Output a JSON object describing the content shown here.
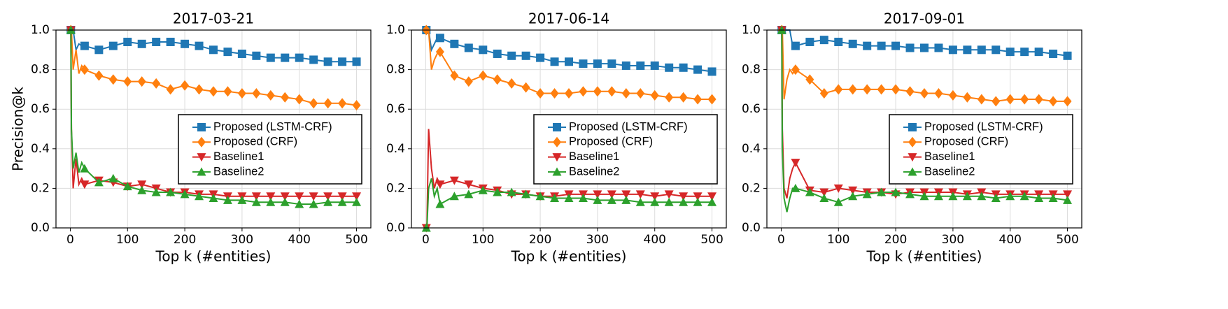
{
  "chart_data": [
    {
      "type": "line",
      "title": "2017-03-21",
      "x_label": "Top k (#entities)",
      "y_label": "Precision@k",
      "x": [
        1,
        2,
        5,
        10,
        15,
        20,
        25,
        50,
        75,
        100,
        125,
        150,
        175,
        200,
        225,
        250,
        275,
        300,
        325,
        350,
        375,
        400,
        425,
        450,
        475,
        500
      ],
      "xlim": [
        -25,
        525
      ],
      "xticks": [
        0,
        100,
        200,
        300,
        400,
        500
      ],
      "ylim": [
        0,
        1
      ],
      "yticks": [
        {
          "value": 0,
          "label": "0.0"
        },
        0.2,
        0.4,
        0.6,
        0.8,
        {
          "value": 1,
          "label": "1.0"
        }
      ],
      "grid": true,
      "legend": "center right",
      "series": [
        {
          "name": "Proposed (LSTM-CRF)",
          "color": "#1f77b4",
          "marker": "square",
          "values": [
            1.0,
            1.0,
            1.0,
            0.9,
            0.93,
            0.92,
            0.92,
            0.9,
            0.92,
            0.94,
            0.93,
            0.94,
            0.94,
            0.93,
            0.92,
            0.9,
            0.89,
            0.88,
            0.87,
            0.86,
            0.86,
            0.86,
            0.85,
            0.84,
            0.84,
            0.84
          ]
        },
        {
          "name": "Proposed (CRF)",
          "color": "#ff7f0e",
          "marker": "diamond",
          "values": [
            1.0,
            1.0,
            0.8,
            0.9,
            0.78,
            0.82,
            0.8,
            0.77,
            0.75,
            0.74,
            0.74,
            0.73,
            0.7,
            0.72,
            0.7,
            0.69,
            0.69,
            0.68,
            0.68,
            0.67,
            0.66,
            0.65,
            0.63,
            0.63,
            0.63,
            0.62
          ]
        },
        {
          "name": "Baseline1",
          "color": "#d62728",
          "marker": "triangle-down",
          "values": [
            1.0,
            0.5,
            0.2,
            0.35,
            0.22,
            0.25,
            0.22,
            0.24,
            0.23,
            0.21,
            0.22,
            0.2,
            0.18,
            0.18,
            0.17,
            0.17,
            0.16,
            0.16,
            0.16,
            0.16,
            0.16,
            0.16,
            0.16,
            0.16,
            0.16,
            0.16
          ]
        },
        {
          "name": "Baseline2",
          "color": "#2ca02c",
          "marker": "triangle-up",
          "values": [
            1.0,
            0.5,
            0.3,
            0.38,
            0.28,
            0.33,
            0.3,
            0.23,
            0.25,
            0.21,
            0.19,
            0.18,
            0.18,
            0.17,
            0.16,
            0.15,
            0.14,
            0.14,
            0.13,
            0.13,
            0.13,
            0.12,
            0.12,
            0.13,
            0.13,
            0.13
          ]
        }
      ]
    },
    {
      "type": "line",
      "title": "2017-06-14",
      "x_label": "Top k (#entities)",
      "x": [
        1,
        2,
        5,
        10,
        15,
        20,
        25,
        50,
        75,
        100,
        125,
        150,
        175,
        200,
        225,
        250,
        275,
        300,
        325,
        350,
        375,
        400,
        425,
        450,
        475,
        500
      ],
      "xlim": [
        -25,
        525
      ],
      "xticks": [
        0,
        100,
        200,
        300,
        400,
        500
      ],
      "ylim": [
        0,
        1
      ],
      "yticks": [
        {
          "value": 0,
          "label": "0.0"
        },
        0.2,
        0.4,
        0.6,
        0.8,
        {
          "value": 1,
          "label": "1.0"
        }
      ],
      "grid": true,
      "legend": "center right",
      "series": [
        {
          "name": "Proposed (LSTM-CRF)",
          "color": "#1f77b4",
          "marker": "square",
          "values": [
            1.0,
            1.0,
            1.0,
            0.9,
            0.93,
            0.96,
            0.96,
            0.93,
            0.91,
            0.9,
            0.88,
            0.87,
            0.87,
            0.86,
            0.84,
            0.84,
            0.83,
            0.83,
            0.83,
            0.82,
            0.82,
            0.82,
            0.81,
            0.81,
            0.8,
            0.79
          ]
        },
        {
          "name": "Proposed (CRF)",
          "color": "#ff7f0e",
          "marker": "diamond",
          "values": [
            1.0,
            1.0,
            1.0,
            0.8,
            0.85,
            0.88,
            0.89,
            0.77,
            0.74,
            0.77,
            0.75,
            0.73,
            0.71,
            0.68,
            0.68,
            0.68,
            0.69,
            0.69,
            0.69,
            0.68,
            0.68,
            0.67,
            0.66,
            0.66,
            0.65,
            0.65
          ]
        },
        {
          "name": "Baseline1",
          "color": "#d62728",
          "marker": "triangle-down",
          "values": [
            0,
            0,
            0.5,
            0.3,
            0.2,
            0.25,
            0.22,
            0.24,
            0.22,
            0.2,
            0.19,
            0.17,
            0.17,
            0.16,
            0.16,
            0.17,
            0.17,
            0.17,
            0.17,
            0.17,
            0.17,
            0.16,
            0.17,
            0.16,
            0.16,
            0.16
          ]
        },
        {
          "name": "Baseline2",
          "color": "#2ca02c",
          "marker": "triangle-up",
          "values": [
            0,
            0,
            0.2,
            0.25,
            0.16,
            0.2,
            0.12,
            0.16,
            0.17,
            0.19,
            0.18,
            0.18,
            0.17,
            0.16,
            0.15,
            0.15,
            0.15,
            0.14,
            0.14,
            0.14,
            0.13,
            0.13,
            0.13,
            0.13,
            0.13,
            0.13
          ]
        }
      ]
    },
    {
      "type": "line",
      "title": "2017-09-01",
      "x_label": "Top k (#entities)",
      "x": [
        1,
        2,
        5,
        10,
        15,
        20,
        25,
        50,
        75,
        100,
        125,
        150,
        175,
        200,
        225,
        250,
        275,
        300,
        325,
        350,
        375,
        400,
        425,
        450,
        475,
        500
      ],
      "xlim": [
        -25,
        525
      ],
      "xticks": [
        0,
        100,
        200,
        300,
        400,
        500
      ],
      "ylim": [
        0,
        1
      ],
      "yticks": [
        {
          "value": 0,
          "label": "0.0"
        },
        0.2,
        0.4,
        0.6,
        0.8,
        {
          "value": 1,
          "label": "1.0"
        }
      ],
      "grid": true,
      "legend": "center right",
      "series": [
        {
          "name": "Proposed (LSTM-CRF)",
          "color": "#1f77b4",
          "marker": "square",
          "values": [
            1.0,
            1.0,
            1.0,
            1.0,
            1.0,
            0.92,
            0.92,
            0.94,
            0.95,
            0.94,
            0.93,
            0.92,
            0.92,
            0.92,
            0.91,
            0.91,
            0.91,
            0.9,
            0.9,
            0.9,
            0.9,
            0.89,
            0.89,
            0.89,
            0.88,
            0.87
          ]
        },
        {
          "name": "Proposed (CRF)",
          "color": "#ff7f0e",
          "marker": "diamond",
          "values": [
            1.0,
            1.0,
            0.65,
            0.75,
            0.8,
            0.78,
            0.8,
            0.75,
            0.68,
            0.7,
            0.7,
            0.7,
            0.7,
            0.7,
            0.69,
            0.68,
            0.68,
            0.67,
            0.66,
            0.65,
            0.64,
            0.65,
            0.65,
            0.65,
            0.64,
            0.64
          ]
        },
        {
          "name": "Baseline1",
          "color": "#d62728",
          "marker": "triangle-down",
          "values": [
            1.0,
            0.5,
            0.2,
            0.15,
            0.25,
            0.3,
            0.33,
            0.19,
            0.18,
            0.2,
            0.19,
            0.18,
            0.18,
            0.17,
            0.18,
            0.18,
            0.18,
            0.18,
            0.17,
            0.18,
            0.17,
            0.17,
            0.17,
            0.17,
            0.17,
            0.17
          ]
        },
        {
          "name": "Baseline2",
          "color": "#2ca02c",
          "marker": "triangle-up",
          "values": [
            1.0,
            0.4,
            0.15,
            0.08,
            0.15,
            0.2,
            0.2,
            0.18,
            0.15,
            0.13,
            0.16,
            0.17,
            0.18,
            0.18,
            0.17,
            0.16,
            0.16,
            0.16,
            0.16,
            0.16,
            0.15,
            0.16,
            0.16,
            0.15,
            0.15,
            0.14
          ]
        }
      ]
    }
  ]
}
